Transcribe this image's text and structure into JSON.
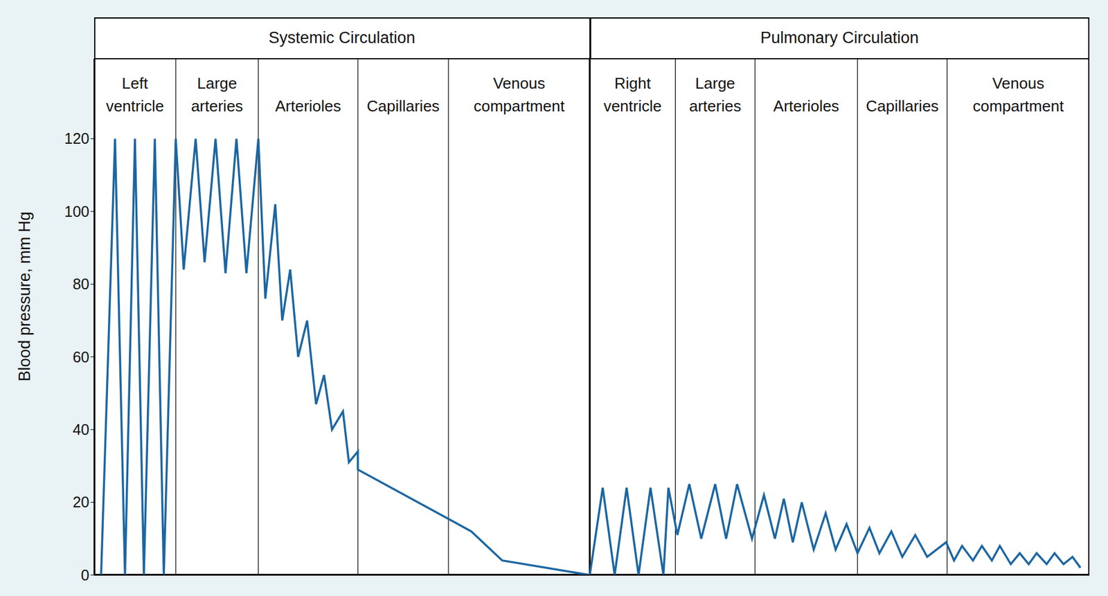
{
  "chart_data": {
    "type": "line",
    "y_label": "Blood pressure, mm Hg",
    "color": "#1b66a2",
    "xlim": [
      0,
      100
    ],
    "ylim": [
      0,
      142
    ],
    "yticks": [
      0,
      20,
      40,
      60,
      80,
      100,
      120
    ],
    "tick_labels": "y",
    "grid": false,
    "x": [
      0.7,
      2.1,
      3.1,
      4.1,
      5.0,
      6.1,
      7.0,
      8.2,
      9.0,
      10.2,
      11.1,
      12.2,
      13.2,
      14.3,
      15.3,
      16.5,
      17.2,
      18.2,
      18.9,
      19.7,
      20.5,
      21.4,
      22.3,
      23.1,
      23.9,
      25.0,
      25.6,
      26.5,
      26.5,
      37.9,
      41.0,
      49.8,
      51.1,
      52.3,
      53.5,
      54.7,
      55.9,
      57.2,
      57.7,
      58.6,
      59.8,
      61.0,
      62.4,
      63.5,
      64.6,
      66.1,
      67.3,
      68.4,
      69.3,
      70.2,
      71.1,
      72.3,
      73.5,
      74.5,
      75.6,
      76.7,
      77.9,
      78.9,
      80.1,
      81.2,
      82.5,
      83.7,
      85.6,
      86.4,
      87.2,
      88.3,
      89.2,
      90.2,
      91.0,
      92.1,
      93.0,
      93.9,
      94.7,
      95.7,
      96.5,
      97.4,
      98.3,
      99.1
    ],
    "values": [
      0,
      120,
      0,
      120,
      0,
      120,
      0,
      120,
      84,
      120,
      86,
      120,
      83,
      120,
      83,
      120,
      76,
      102,
      70,
      84,
      60,
      70,
      47,
      55,
      40,
      45,
      31,
      34,
      29,
      12,
      4,
      0,
      24,
      0,
      24,
      0,
      24,
      0,
      24,
      11,
      25,
      10,
      25,
      10,
      25,
      10,
      22,
      10,
      21,
      9,
      20,
      7,
      17,
      7,
      14,
      6,
      13,
      6,
      12,
      5,
      11,
      5,
      9,
      4,
      8,
      4,
      8,
      4,
      8,
      3,
      6,
      3,
      6,
      3,
      6,
      3,
      5,
      2
    ],
    "circulations": [
      {
        "label": "Systemic Circulation",
        "start": 0,
        "end": 49.8
      },
      {
        "label": "Pulmonary Circulation",
        "start": 49.8,
        "end": 100
      }
    ],
    "compartments": [
      {
        "label": [
          "Left",
          "ventricle"
        ],
        "start": 0,
        "end": 8.2
      },
      {
        "label": [
          "Large",
          "arteries"
        ],
        "start": 8.2,
        "end": 16.5
      },
      {
        "label": [
          "Arterioles"
        ],
        "start": 16.5,
        "end": 26.5
      },
      {
        "label": [
          "Capillaries"
        ],
        "start": 26.5,
        "end": 35.6
      },
      {
        "label": [
          "Venous",
          "compartment"
        ],
        "start": 35.6,
        "end": 49.8
      },
      {
        "label": [
          "Right",
          "ventricle"
        ],
        "start": 49.8,
        "end": 58.4
      },
      {
        "label": [
          "Large",
          "arteries"
        ],
        "start": 58.4,
        "end": 66.4
      },
      {
        "label": [
          "Arterioles"
        ],
        "start": 66.4,
        "end": 76.7
      },
      {
        "label": [
          "Capillaries"
        ],
        "start": 76.7,
        "end": 85.7
      },
      {
        "label": [
          "Venous",
          "compartment"
        ],
        "start": 85.7,
        "end": 100
      }
    ]
  }
}
